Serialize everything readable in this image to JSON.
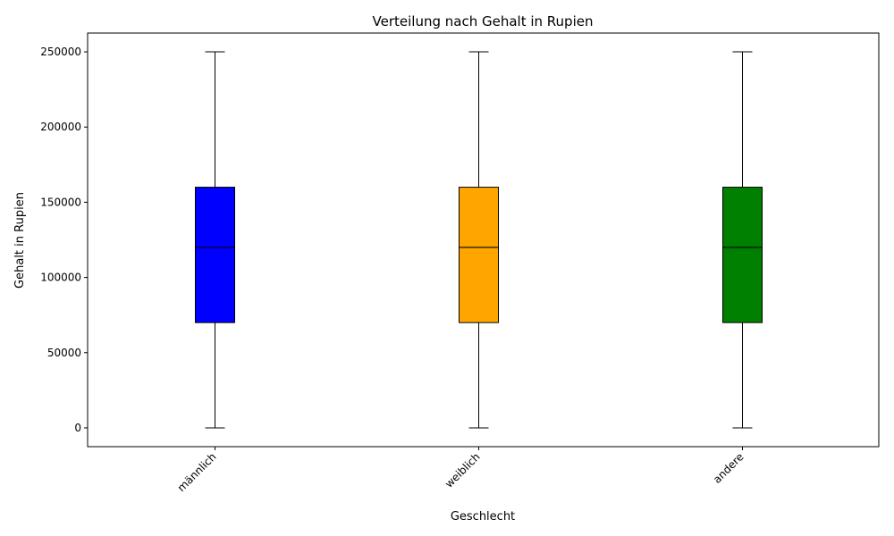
{
  "chart_data": {
    "type": "box",
    "title": "Verteilung nach Gehalt in Rupien",
    "xlabel": "Geschlecht",
    "ylabel": "Gehalt in Rupien",
    "categories": [
      "männlich",
      "weiblich",
      "andere"
    ],
    "colors": [
      "#0000ff",
      "#ffa500",
      "#008000"
    ],
    "boxes": [
      {
        "min": 0,
        "q1": 70000,
        "median": 120000,
        "q3": 160000,
        "max": 250000
      },
      {
        "min": 0,
        "q1": 70000,
        "median": 120000,
        "q3": 160000,
        "max": 250000
      },
      {
        "min": 0,
        "q1": 70000,
        "median": 120000,
        "q3": 160000,
        "max": 250000
      }
    ],
    "yticks": [
      0,
      50000,
      100000,
      150000,
      200000,
      250000
    ],
    "ytick_labels": [
      "0",
      "50000",
      "100000",
      "150000",
      "200000",
      "250000"
    ],
    "ylim": [
      -12500,
      262500
    ],
    "grid": false,
    "legend": "none"
  }
}
